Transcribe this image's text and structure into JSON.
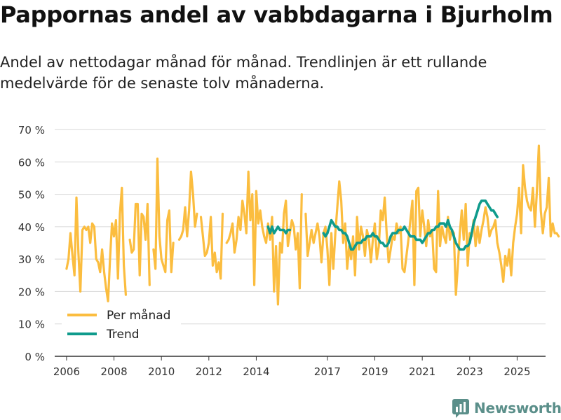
{
  "header": {
    "title": "Pappornas andel av vabbdagarna i Bjurholm",
    "subtitle": "Andel av nettodagar månad för månad. Trendlinjen är ett rullande medelvärde för de senaste tolv månaderna."
  },
  "brand": {
    "name": "Newsworthy",
    "icon": "newsworthy-logo-icon"
  },
  "colors": {
    "per_month": "#fbbd3f",
    "trend": "#0f9b8c",
    "grid": "#d7d7d7",
    "axis": "#333333"
  },
  "chart_data": {
    "type": "line",
    "title": "Pappornas andel av vabbdagarna i Bjurholm",
    "xlabel": "",
    "ylabel": "",
    "ylim": [
      0,
      70
    ],
    "yticks": [
      0,
      10,
      20,
      30,
      40,
      50,
      60,
      70
    ],
    "ytick_labels": [
      "0 %",
      "10 %",
      "20 %",
      "30 %",
      "40 %",
      "50 %",
      "60 %",
      "70 %"
    ],
    "xlim": [
      2005.5,
      2026.2
    ],
    "xticks": [
      2006,
      2008,
      2010,
      2012,
      2014,
      2017,
      2019,
      2021,
      2023,
      2025
    ],
    "xtick_labels": [
      "2006",
      "2008",
      "2010",
      "2012",
      "2014",
      "2017",
      "2019",
      "2021",
      "2023",
      "2025"
    ],
    "grid": true,
    "legend": {
      "position": "bottom-left",
      "entries": [
        "Per månad",
        "Trend"
      ]
    },
    "series": [
      {
        "name": "Per månad",
        "x_start": 2006.0,
        "step": 0.083333,
        "values": [
          27,
          30,
          38,
          31,
          25,
          49,
          32,
          20,
          39,
          40,
          39,
          40,
          35,
          41,
          40,
          30,
          29,
          26,
          33,
          26,
          21,
          17,
          30,
          41,
          37,
          42,
          24,
          44,
          52,
          28,
          19,
          null,
          36,
          32,
          33,
          47,
          47,
          25,
          44,
          43,
          36,
          47,
          22,
          null,
          33,
          27,
          61,
          37,
          30,
          28,
          26,
          42,
          45,
          26,
          35,
          null,
          null,
          36,
          37,
          39,
          46,
          37,
          45,
          57,
          50,
          40,
          44,
          null,
          43,
          37,
          31,
          32,
          35,
          43,
          28,
          32,
          26,
          29,
          24,
          44,
          null,
          35,
          36,
          38,
          41,
          32,
          36,
          43,
          39,
          48,
          44,
          38,
          57,
          42,
          50,
          22,
          51,
          41,
          45,
          40,
          37,
          35,
          41,
          36,
          43,
          20,
          34,
          16,
          35,
          32,
          44,
          48,
          34,
          38,
          42,
          40,
          33,
          38,
          21,
          50,
          null,
          44,
          31,
          35,
          39,
          35,
          38,
          41,
          37,
          29,
          38,
          40,
          33,
          22,
          38,
          27,
          38,
          46,
          54,
          48,
          35,
          41,
          27,
          34,
          30,
          37,
          25,
          43,
          33,
          40,
          37,
          31,
          39,
          36,
          29,
          36,
          41,
          30,
          34,
          45,
          42,
          49,
          38,
          29,
          33,
          37,
          36,
          41,
          38,
          40,
          27,
          26,
          31,
          36,
          42,
          48,
          22,
          51,
          52,
          37,
          45,
          40,
          34,
          42,
          37,
          39,
          27,
          26,
          51,
          34,
          40,
          37,
          35,
          43,
          36,
          39,
          38,
          19,
          28,
          38,
          45,
          36,
          47,
          28,
          38,
          37,
          42,
          34,
          40,
          35,
          39,
          42,
          46,
          43,
          37,
          39,
          40,
          42,
          35,
          32,
          28,
          23,
          31,
          28,
          33,
          25,
          35,
          40,
          44,
          52,
          38,
          59,
          52,
          48,
          46,
          45,
          52,
          40,
          51,
          65,
          45,
          38,
          44,
          46,
          55,
          37,
          41,
          38,
          38,
          37
        ]
      },
      {
        "name": "Trend",
        "x_start": 2014.5,
        "step": 0.083333,
        "values": [
          40,
          38,
          40,
          38,
          39,
          40,
          39,
          39,
          39,
          38,
          39,
          39,
          null,
          null,
          null,
          null,
          null,
          null,
          null,
          null,
          null,
          null,
          null,
          null,
          null,
          null,
          null,
          null,
          38,
          37,
          38,
          40,
          42,
          41,
          40,
          40,
          39,
          39,
          38,
          38,
          37,
          35,
          33,
          33,
          34,
          35,
          35,
          35,
          36,
          36,
          37,
          37,
          37,
          38,
          37,
          37,
          36,
          35,
          35,
          34,
          34,
          35,
          37,
          38,
          38,
          38,
          39,
          39,
          39,
          40,
          39,
          38,
          37,
          37,
          37,
          36,
          36,
          36,
          35,
          36,
          37,
          38,
          38,
          39,
          39,
          40,
          40,
          41,
          41,
          41,
          40,
          42,
          40,
          39,
          37,
          35,
          34,
          33,
          33,
          33,
          34,
          34,
          35,
          38,
          41,
          43,
          45,
          47,
          48,
          48,
          48,
          47,
          46,
          45,
          45,
          44,
          43
        ]
      }
    ]
  }
}
